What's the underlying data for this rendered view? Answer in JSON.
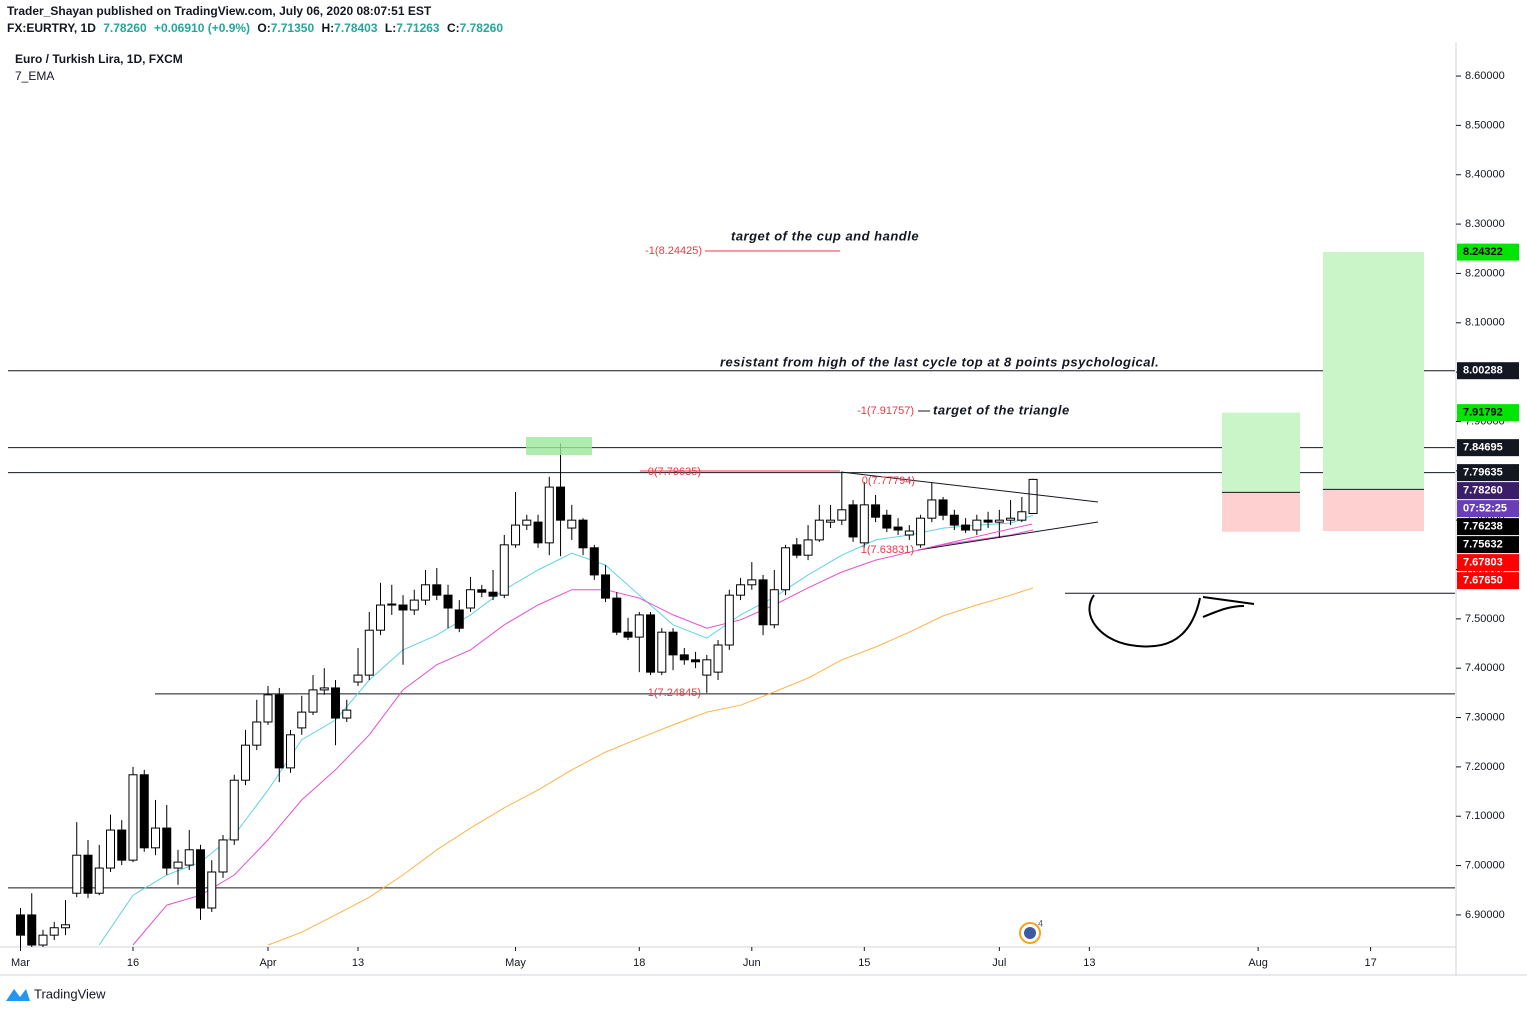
{
  "header": {
    "publisher": "Trader_Shayan published on TradingView.com, July 06, 2020 08:07:51 EST",
    "symbol": "FX:EURTRY, 1D",
    "last": "7.78260",
    "change": "+0.06910 (+0.9%)",
    "ohlc": [
      {
        "key": "O:",
        "value": "7.71350"
      },
      {
        "key": "H:",
        "value": "7.78403"
      },
      {
        "key": "L:",
        "value": "7.71263"
      },
      {
        "key": "C:",
        "value": "7.78260"
      }
    ]
  },
  "chart_data": {
    "type": "candlestick",
    "title": "Euro / Turkish Lira, 1D, FXCM",
    "indicator": "7_EMA",
    "candles": [
      [
        6.9,
        6.914,
        6.835,
        6.859
      ],
      [
        6.9,
        6.944,
        6.835,
        6.839
      ],
      [
        6.839,
        6.87,
        6.835,
        6.859
      ],
      [
        6.859,
        6.886,
        6.849,
        6.874
      ],
      [
        6.874,
        6.93,
        6.859,
        6.88
      ],
      [
        6.944,
        7.088,
        6.936,
        7.021
      ],
      [
        7.021,
        7.052,
        6.934,
        6.944
      ],
      [
        6.944,
        7.042,
        6.94,
        6.995
      ],
      [
        6.995,
        7.103,
        6.987,
        7.072
      ],
      [
        7.072,
        7.092,
        7.001,
        7.011
      ],
      [
        7.011,
        7.2,
        7.007,
        7.184
      ],
      [
        7.184,
        7.194,
        7.028,
        7.036
      ],
      [
        7.036,
        7.133,
        7.021,
        7.076
      ],
      [
        7.076,
        7.123,
        6.981,
        6.995
      ],
      [
        6.995,
        7.032,
        6.961,
        7.007
      ],
      [
        7.001,
        7.072,
        6.991,
        7.032
      ],
      [
        7.032,
        7.042,
        6.89,
        6.914
      ],
      [
        6.914,
        7.011,
        6.906,
        6.987
      ],
      [
        6.987,
        7.062,
        6.975,
        7.052
      ],
      [
        7.052,
        7.184,
        7.042,
        7.173
      ],
      [
        7.173,
        7.275,
        7.163,
        7.244
      ],
      [
        7.244,
        7.336,
        7.234,
        7.291
      ],
      [
        7.291,
        7.364,
        7.285,
        7.346
      ],
      [
        7.346,
        7.36,
        7.169,
        7.198
      ],
      [
        7.198,
        7.275,
        7.188,
        7.265
      ],
      [
        7.279,
        7.344,
        7.265,
        7.311
      ],
      [
        7.311,
        7.386,
        7.305,
        7.356
      ],
      [
        7.356,
        7.4,
        7.346,
        7.36
      ],
      [
        7.36,
        7.376,
        7.244,
        7.299
      ],
      [
        7.299,
        7.336,
        7.291,
        7.315
      ],
      [
        7.372,
        7.441,
        7.364,
        7.386
      ],
      [
        7.386,
        7.514,
        7.376,
        7.477
      ],
      [
        7.477,
        7.573,
        7.467,
        7.528
      ],
      [
        7.528,
        7.569,
        7.508,
        7.53
      ],
      [
        7.528,
        7.548,
        7.407,
        7.518
      ],
      [
        7.518,
        7.559,
        7.508,
        7.538
      ],
      [
        7.538,
        7.599,
        7.528,
        7.569
      ],
      [
        7.569,
        7.603,
        7.538,
        7.548
      ],
      [
        7.548,
        7.569,
        7.481,
        7.522
      ],
      [
        7.518,
        7.538,
        7.473,
        7.481
      ],
      [
        7.522,
        7.585,
        7.514,
        7.559
      ],
      [
        7.559,
        7.569,
        7.544,
        7.554
      ],
      [
        7.554,
        7.599,
        7.538,
        7.546
      ],
      [
        7.548,
        7.67,
        7.542,
        7.65
      ],
      [
        7.65,
        7.757,
        7.644,
        7.69
      ],
      [
        7.69,
        7.711,
        7.68,
        7.7
      ],
      [
        7.696,
        7.711,
        7.644,
        7.654
      ],
      [
        7.654,
        7.788,
        7.629,
        7.767
      ],
      [
        7.767,
        7.856,
        7.627,
        7.7
      ],
      [
        7.684,
        7.731,
        7.66,
        7.7
      ],
      [
        7.7,
        7.704,
        7.629,
        7.644
      ],
      [
        7.644,
        7.65,
        7.579,
        7.589
      ],
      [
        7.589,
        7.609,
        7.534,
        7.542
      ],
      [
        7.542,
        7.554,
        7.467,
        7.473
      ],
      [
        7.473,
        7.502,
        7.457,
        7.463
      ],
      [
        7.463,
        7.514,
        7.392,
        7.508
      ],
      [
        7.508,
        7.514,
        7.386,
        7.392
      ],
      [
        7.392,
        7.481,
        7.386,
        7.473
      ],
      [
        7.473,
        7.481,
        7.396,
        7.427
      ],
      [
        7.427,
        7.441,
        7.407,
        7.417
      ],
      [
        7.417,
        7.433,
        7.4,
        7.413
      ],
      [
        7.386,
        7.427,
        7.35,
        7.417
      ],
      [
        7.392,
        7.457,
        7.376,
        7.447
      ],
      [
        7.447,
        7.559,
        7.437,
        7.548
      ],
      [
        7.548,
        7.583,
        7.538,
        7.569
      ],
      [
        7.569,
        7.615,
        7.559,
        7.579
      ],
      [
        7.579,
        7.589,
        7.467,
        7.488
      ],
      [
        7.488,
        7.599,
        7.481,
        7.559
      ],
      [
        7.559,
        7.65,
        7.548,
        7.644
      ],
      [
        7.65,
        7.664,
        7.623,
        7.629
      ],
      [
        7.629,
        7.69,
        7.619,
        7.66
      ],
      [
        7.66,
        7.731,
        7.656,
        7.7
      ],
      [
        7.696,
        7.731,
        7.684,
        7.7
      ],
      [
        7.7,
        7.798,
        7.69,
        7.721
      ],
      [
        7.731,
        7.741,
        7.656,
        7.666
      ],
      [
        7.654,
        7.777,
        7.644,
        7.731
      ],
      [
        7.731,
        7.751,
        7.696,
        7.706
      ],
      [
        7.71,
        7.721,
        7.676,
        7.684
      ],
      [
        7.686,
        7.704,
        7.67,
        7.68
      ],
      [
        7.67,
        7.69,
        7.66,
        7.678
      ],
      [
        7.65,
        7.711,
        7.644,
        7.704
      ],
      [
        7.704,
        7.777,
        7.696,
        7.741
      ],
      [
        7.741,
        7.747,
        7.7,
        7.71
      ],
      [
        7.71,
        7.721,
        7.68,
        7.69
      ],
      [
        7.69,
        7.704,
        7.674,
        7.68
      ],
      [
        7.68,
        7.711,
        7.67,
        7.7
      ],
      [
        7.7,
        7.717,
        7.684,
        7.696
      ],
      [
        7.696,
        7.721,
        7.664,
        7.7
      ],
      [
        7.7,
        7.741,
        7.69,
        7.704
      ],
      [
        7.7,
        7.747,
        7.696,
        7.717
      ],
      [
        7.7135,
        7.78403,
        7.71263,
        7.7826
      ]
    ],
    "ema": [
      {
        "color": "#5fd3e6",
        "x": [
          7,
          10,
          13,
          16,
          19,
          22,
          25,
          28,
          31,
          34,
          37,
          40,
          43,
          46,
          49,
          52,
          55,
          58,
          61,
          64,
          67,
          70,
          73,
          76,
          79,
          82,
          85,
          88,
          90
        ],
        "values": [
          6.839,
          6.94,
          6.981,
          7.007,
          7.062,
          7.153,
          7.255,
          7.295,
          7.376,
          7.437,
          7.467,
          7.508,
          7.559,
          7.599,
          7.633,
          7.609,
          7.548,
          7.488,
          7.461,
          7.508,
          7.544,
          7.589,
          7.629,
          7.66,
          7.67,
          7.684,
          7.69,
          7.694,
          7.71
        ]
      },
      {
        "color": "#e84fcf",
        "x": [
          10,
          13,
          16,
          19,
          22,
          25,
          28,
          31,
          34,
          37,
          40,
          43,
          46,
          49,
          52,
          55,
          58,
          61,
          64,
          67,
          70,
          73,
          76,
          79,
          82,
          85,
          88,
          90
        ],
        "values": [
          6.839,
          6.92,
          6.94,
          6.981,
          7.052,
          7.133,
          7.194,
          7.265,
          7.356,
          7.407,
          7.437,
          7.488,
          7.528,
          7.559,
          7.559,
          7.542,
          7.508,
          7.481,
          7.498,
          7.528,
          7.563,
          7.595,
          7.619,
          7.635,
          7.65,
          7.66,
          7.67,
          7.68
        ]
      },
      {
        "color": "#ffb347",
        "x": [
          22,
          25,
          28,
          31,
          34,
          37,
          40,
          43,
          46,
          49,
          52,
          55,
          58,
          61,
          64,
          67,
          70,
          73,
          76,
          79,
          82,
          85,
          88,
          90
        ],
        "values": [
          6.839,
          6.865,
          6.9,
          6.936,
          6.981,
          7.032,
          7.076,
          7.117,
          7.153,
          7.194,
          7.23,
          7.258,
          7.285,
          7.311,
          7.325,
          7.352,
          7.38,
          7.417,
          7.443,
          7.473,
          7.506,
          7.528,
          7.548,
          7.563
        ]
      }
    ],
    "xlim": [
      -1.11,
      127.5
    ],
    "xticks": [
      {
        "value": 0,
        "label": "Mar"
      },
      {
        "value": 10,
        "label": "16"
      },
      {
        "value": 22,
        "label": "Apr"
      },
      {
        "value": 30,
        "label": "13"
      },
      {
        "value": 44,
        "label": "May"
      },
      {
        "value": 55,
        "label": "18"
      },
      {
        "value": 65,
        "label": "Jun"
      },
      {
        "value": 75,
        "label": "15"
      },
      {
        "value": 87,
        "label": "Jul"
      },
      {
        "value": 95,
        "label": "13"
      },
      {
        "value": 110,
        "label": "Aug"
      },
      {
        "value": 120,
        "label": "17"
      }
    ],
    "ylim": [
      6.835,
      8.669
    ],
    "yticks": [
      {
        "value": 6.9,
        "label": "6.90000"
      },
      {
        "value": 7.0,
        "label": "7.00000"
      },
      {
        "value": 7.1,
        "label": "7.10000"
      },
      {
        "value": 7.2,
        "label": "7.20000"
      },
      {
        "value": 7.3,
        "label": "7.30000"
      },
      {
        "value": 7.4,
        "label": "7.40000"
      },
      {
        "value": 7.5,
        "label": "7.50000"
      },
      {
        "value": 7.6,
        "label": "7.60000"
      },
      {
        "value": 7.7,
        "label": "7.70000"
      },
      {
        "value": 7.8,
        "label": "7.80000"
      },
      {
        "value": 7.9,
        "label": "7.90000"
      },
      {
        "value": 8.0,
        "label": "8.00000"
      },
      {
        "value": 8.1,
        "label": "8.10000"
      },
      {
        "value": 8.2,
        "label": "8.20000"
      },
      {
        "value": 8.3,
        "label": "8.30000"
      },
      {
        "value": 8.4,
        "label": "8.40000"
      },
      {
        "value": 8.5,
        "label": "8.50000"
      },
      {
        "value": 8.6,
        "label": "8.60000"
      }
    ],
    "levels": [
      8.00288,
      7.84695,
      7.79635,
      7.348,
      6.9547,
      7.552
    ],
    "positions": [
      {
        "target": 7.91792,
        "entry": 7.75632,
        "stop": 7.6765
      },
      {
        "target": 8.24322,
        "entry": 7.76238,
        "stop": 7.67803
      }
    ],
    "price_tags": [
      {
        "value": 8.24322,
        "label": "8.24322",
        "color": "#00e600",
        "text_color": "#000000"
      },
      {
        "value": 8.00288,
        "label": "8.00288",
        "color": "#131722",
        "text_color": "#ffffff"
      },
      {
        "value": 7.91792,
        "label": "7.91792",
        "color": "#00e600",
        "text_color": "#000000"
      },
      {
        "value": 7.84695,
        "label": "7.84695",
        "color": "#131722",
        "text_color": "#ffffff"
      },
      {
        "value": 7.79635,
        "label": "7.79635",
        "color": "#131722",
        "text_color": "#ffffff"
      },
      {
        "value": 7.7826,
        "label": "7.78260",
        "color": "#3b1e6b",
        "text_color": "#ffffff"
      },
      {
        "label": "07:52:25",
        "color": "#6a3fb5",
        "text_color": "#ffffff"
      },
      {
        "value": 7.76238,
        "label": "7.76238",
        "color": "#000000",
        "text_color": "#ffffff"
      },
      {
        "value": 7.75632,
        "label": "7.75632",
        "color": "#000000",
        "text_color": "#ffffff"
      },
      {
        "value": 7.67803,
        "label": "7.67803",
        "color": "#ff0000",
        "text_color": "#ffffff"
      },
      {
        "value": 7.6765,
        "label": "7.67650",
        "color": "#ff0000",
        "text_color": "#ffffff"
      }
    ],
    "annotations": [
      "target of the cup and handle",
      "-1(8.24425)",
      "resistant from high of the last cycle top at 8 points psychological.",
      "-1(7.91757)",
      "target of the triangle",
      "0(7.79635)",
      "0(7.77794)",
      "1(7.63831)",
      "1(7.24845)"
    ]
  },
  "footer": {
    "brand": "TradingView"
  }
}
